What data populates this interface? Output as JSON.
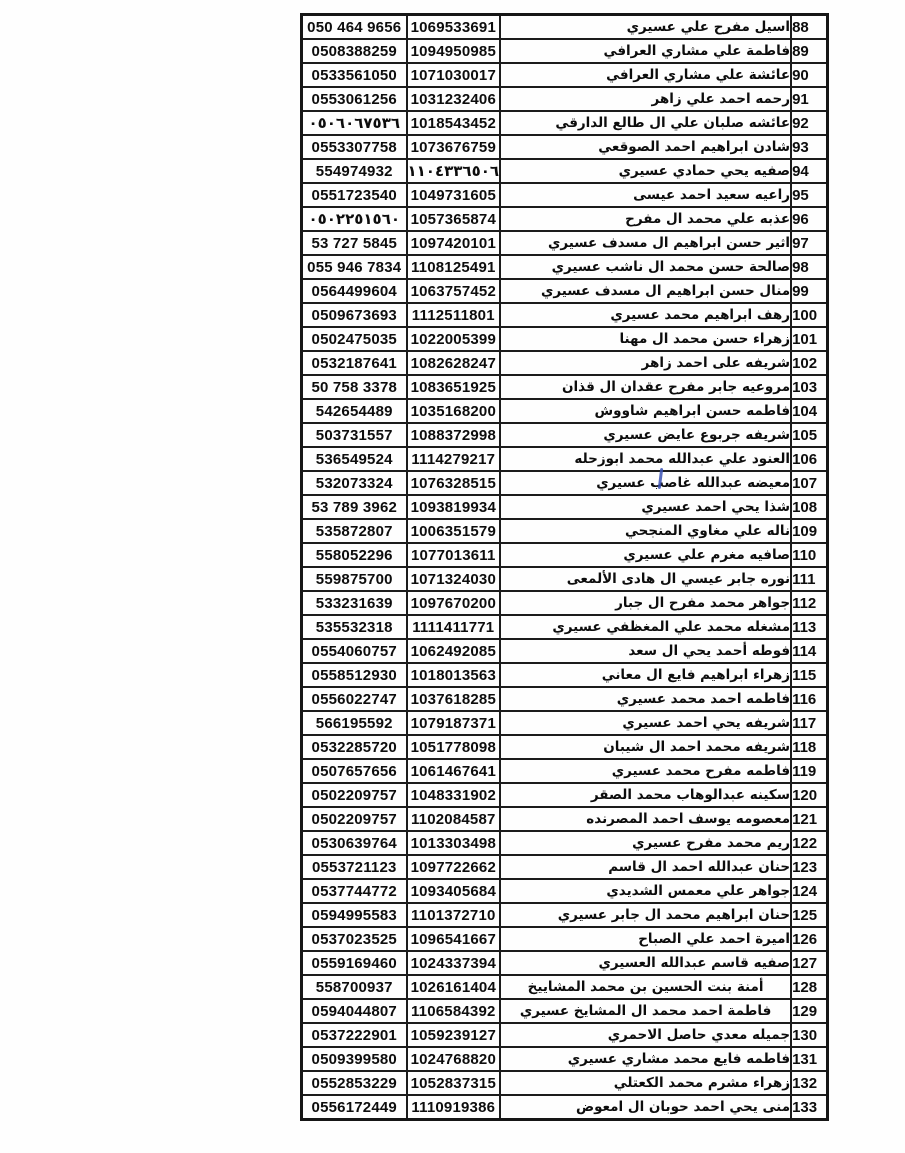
{
  "table": {
    "rows": [
      {
        "num": "88",
        "phone": "050 464 9656",
        "id": "1069533691",
        "name": "اسيل مفرح علي عسيري"
      },
      {
        "num": "89",
        "phone": "0508388259",
        "id": "1094950985",
        "name": "فاطمة علي مشاري العرافي"
      },
      {
        "num": "90",
        "phone": "0533561050",
        "id": "1071030017",
        "name": "عائشة علي مشاري العرافي"
      },
      {
        "num": "91",
        "phone": "0553061256",
        "id": "1031232406",
        "name": "رحمه احمد علي زاهر"
      },
      {
        "num": "92",
        "phone": "٠٥٠٦٠٦٧٥٣٦",
        "id": "1018543452",
        "name": "عائشه صلبان علي ال طالع الدارقي"
      },
      {
        "num": "93",
        "phone": "0553307758",
        "id": "1073676759",
        "name": "شادن ابراهيم احمد الصوقعي"
      },
      {
        "num": "94",
        "phone": "554974932",
        "id": "١١٠٤٣٣٦٥٠٦",
        "name": "صفيه يحي حمادي عسيري"
      },
      {
        "num": "95",
        "phone": "0551723540",
        "id": "1049731605",
        "name": "راعيه سعيد احمد عيسى"
      },
      {
        "num": "96",
        "phone": "٠٥٠٢٢٥١٥٦٠",
        "id": "1057365874",
        "name": "عذبه علي محمد ال مفرح"
      },
      {
        "num": "97",
        "phone": "53 727 5845",
        "id": "1097420101",
        "name": "اثير حسن ابراهيم ال مسدف عسيري"
      },
      {
        "num": "98",
        "phone": "055 946 7834",
        "id": "1108125491",
        "name": "صالحة حسن محمد ال ناشب عسيري"
      },
      {
        "num": "99",
        "phone": "0564499604",
        "id": "1063757452",
        "name": "منال حسن ابراهيم ال مسدف عسيري"
      },
      {
        "num": "100",
        "phone": "0509673693",
        "id": "1112511801",
        "name": "رهف ابراهيم محمد عسيري"
      },
      {
        "num": "101",
        "phone": "0502475035",
        "id": "1022005399",
        "name": "زهراء حسن محمد ال مهنا"
      },
      {
        "num": "102",
        "phone": "0532187641",
        "id": "1082628247",
        "name": "شريفه على احمد زاهر"
      },
      {
        "num": "103",
        "phone": "50 758 3378",
        "id": "1083651925",
        "name": "مروعيه جابر مفرح عقدان ال قذان"
      },
      {
        "num": "104",
        "phone": "542654489",
        "id": "1035168200",
        "name": "فاطمه حسن ابراهيم شاووش"
      },
      {
        "num": "105",
        "phone": "503731557",
        "id": "1088372998",
        "name": "شريفه جربوع عايض عسيري"
      },
      {
        "num": "106",
        "phone": "536549524",
        "id": "1114279217",
        "name": "العنود علي عبدالله محمد ابوزحله"
      },
      {
        "num": "107",
        "phone": "532073324",
        "id": "1076328515",
        "name": "معيضه عبدالله غاصب عسيري"
      },
      {
        "num": "108",
        "phone": "53 789 3962",
        "id": "1093819934",
        "name": "شذا يحي احمد عسيري"
      },
      {
        "num": "109",
        "phone": "535872807",
        "id": "1006351579",
        "name": "ناله علي مغاوي المنجحي"
      },
      {
        "num": "110",
        "phone": "558052296",
        "id": "1077013611",
        "name": "صافيه مغرم علي عسيري"
      },
      {
        "num": "111",
        "phone": "559875700",
        "id": "1071324030",
        "name": "نوره جابر عيسي ال هادى الألمعى"
      },
      {
        "num": "112",
        "phone": "533231639",
        "id": "1097670200",
        "name": "جواهر محمد مفرح ال جبار"
      },
      {
        "num": "113",
        "phone": "535532318",
        "id": "1111411771",
        "name": "مشغله محمد علي المغظفي عسيري"
      },
      {
        "num": "114",
        "phone": "0554060757",
        "id": "1062492085",
        "name": "فوطه أحمد يحي ال سعد"
      },
      {
        "num": "115",
        "phone": "0558512930",
        "id": "1018013563",
        "name": "زهراء ابراهيم فايع ال معاني"
      },
      {
        "num": "116",
        "phone": "0556022747",
        "id": "1037618285",
        "name": "فاطمه احمد محمد عسيري"
      },
      {
        "num": "117",
        "phone": "566195592",
        "id": "1079187371",
        "name": "شريفه يحي احمد عسيري"
      },
      {
        "num": "118",
        "phone": "0532285720",
        "id": "1051778098",
        "name": "شريفه محمد احمد ال شيبان"
      },
      {
        "num": "119",
        "phone": "0507657656",
        "id": "1061467641",
        "name": "فاطمه مفرح محمد عسيري"
      },
      {
        "num": "120",
        "phone": "0502209757",
        "id": "1048331902",
        "name": "سكينه عبدالوهاب محمد الصقر"
      },
      {
        "num": "121",
        "phone": "0502209757",
        "id": "1102084587",
        "name": "معصومه يوسف احمد المصرنده"
      },
      {
        "num": "122",
        "phone": "0530639764",
        "id": "1013303498",
        "name": "ريم محمد مفرح عسيري"
      },
      {
        "num": "123",
        "phone": "0553721123",
        "id": "1097722662",
        "name": "حنان عبدالله احمد ال قاسم"
      },
      {
        "num": "124",
        "phone": "0537744772",
        "id": "1093405684",
        "name": "جواهر علي معمس الشديدي"
      },
      {
        "num": "125",
        "phone": "0594995583",
        "id": "1101372710",
        "name": "حنان ابراهيم محمد ال جابر عسيري"
      },
      {
        "num": "126",
        "phone": "0537023525",
        "id": "1096541667",
        "name": "اميرة احمد علي الصباح"
      },
      {
        "num": "127",
        "phone": "0559169460",
        "id": "1024337394",
        "name": "صفيه قاسم عبدالله العسيري"
      },
      {
        "num": "128",
        "phone": "558700937",
        "id": "1026161404",
        "name": "أمنة بنت الحسين بن محمد المشاييخ",
        "align": "center"
      },
      {
        "num": "129",
        "phone": "0594044807",
        "id": "1106584392",
        "name": "فاطمة احمد محمد ال المشايخ عسيري",
        "align": "center"
      },
      {
        "num": "130",
        "phone": "0537222901",
        "id": "1059239127",
        "name": "جميله معدي حاصل الاحمري"
      },
      {
        "num": "131",
        "phone": "0509399580",
        "id": "1024768820",
        "name": "فاطمه فايع محمد مشاري عسيري"
      },
      {
        "num": "132",
        "phone": "0552853229",
        "id": "1052837315",
        "name": "زهراء مشرم محمد الكعتلي"
      },
      {
        "num": "133",
        "phone": "0556172449",
        "id": "1110919386",
        "name": "منى يحي احمد حوبان ال امعوض"
      }
    ]
  },
  "artifacts": {
    "ink_mark_color": "#3b52b5"
  }
}
